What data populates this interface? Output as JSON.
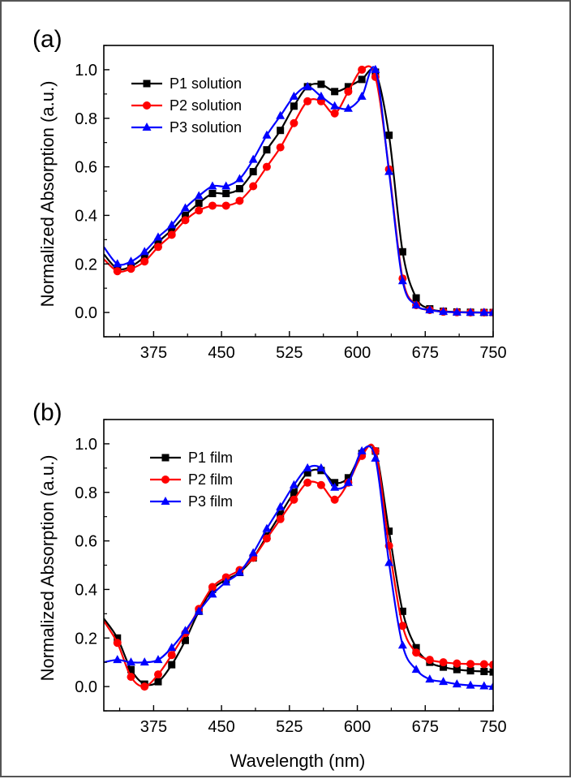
{
  "figure": {
    "x_axis_title": "Wavelength (nm)",
    "y_axis_title": "Normalized Absorption (a.u.)"
  },
  "chart_data": [
    {
      "type": "line",
      "panel_label": "(a)",
      "xlabel": "Wavelength (nm)",
      "ylabel": "Normalized Absorption (a.u.)",
      "xlim": [
        320,
        750
      ],
      "ylim": [
        -0.1,
        1.1
      ],
      "xticks": [
        "375",
        "450",
        "525",
        "600",
        "675",
        "750"
      ],
      "yticks": [
        "0.0",
        "0.2",
        "0.4",
        "0.6",
        "0.8",
        "1.0"
      ],
      "legend_position": "top-left",
      "series": [
        {
          "name": "P1 solution",
          "color": "#000000",
          "marker": "square",
          "x": [
            320,
            335,
            350,
            365,
            380,
            395,
            410,
            425,
            440,
            455,
            470,
            485,
            500,
            515,
            530,
            545,
            560,
            575,
            590,
            605,
            620,
            635,
            650,
            665,
            680,
            695,
            710,
            725,
            740,
            750
          ],
          "y": [
            0.24,
            0.18,
            0.19,
            0.23,
            0.29,
            0.34,
            0.4,
            0.45,
            0.49,
            0.49,
            0.51,
            0.58,
            0.67,
            0.75,
            0.85,
            0.93,
            0.94,
            0.91,
            0.93,
            0.96,
            0.99,
            0.73,
            0.25,
            0.06,
            0.015,
            0.005,
            0.002,
            0.001,
            0.0,
            0.0
          ]
        },
        {
          "name": "P2 solution",
          "color": "#ff0000",
          "marker": "circle",
          "x": [
            320,
            335,
            350,
            365,
            380,
            395,
            410,
            425,
            440,
            455,
            470,
            485,
            500,
            515,
            530,
            545,
            560,
            575,
            590,
            605,
            620,
            635,
            650,
            665,
            680,
            695,
            710,
            725,
            740,
            750
          ],
          "y": [
            0.22,
            0.17,
            0.18,
            0.21,
            0.27,
            0.32,
            0.38,
            0.42,
            0.44,
            0.44,
            0.46,
            0.52,
            0.6,
            0.68,
            0.78,
            0.87,
            0.87,
            0.82,
            0.91,
            1.0,
            0.97,
            0.59,
            0.14,
            0.03,
            0.01,
            0.003,
            0.001,
            0.0,
            0.0,
            0.0
          ]
        },
        {
          "name": "P3 solution",
          "color": "#0000ff",
          "marker": "triangle",
          "x": [
            320,
            335,
            350,
            365,
            380,
            395,
            410,
            425,
            440,
            455,
            470,
            485,
            500,
            515,
            530,
            545,
            560,
            575,
            590,
            605,
            620,
            635,
            650,
            665,
            680,
            695,
            710,
            725,
            740,
            750
          ],
          "y": [
            0.27,
            0.2,
            0.21,
            0.25,
            0.31,
            0.36,
            0.43,
            0.48,
            0.52,
            0.52,
            0.55,
            0.63,
            0.73,
            0.81,
            0.89,
            0.93,
            0.89,
            0.85,
            0.84,
            0.89,
            1.0,
            0.58,
            0.13,
            0.03,
            0.01,
            0.003,
            0.001,
            0.0,
            0.0,
            0.0
          ]
        }
      ]
    },
    {
      "type": "line",
      "panel_label": "(b)",
      "xlabel": "Wavelength (nm)",
      "ylabel": "Normalized Absorption (a.u.)",
      "xlim": [
        320,
        750
      ],
      "ylim": [
        -0.1,
        1.1
      ],
      "xticks": [
        "375",
        "450",
        "525",
        "600",
        "675",
        "750"
      ],
      "yticks": [
        "0.0",
        "0.2",
        "0.4",
        "0.6",
        "0.8",
        "1.0"
      ],
      "legend_position": "top-left",
      "series": [
        {
          "name": "P1 film",
          "color": "#000000",
          "marker": "square",
          "x": [
            320,
            335,
            350,
            365,
            380,
            395,
            410,
            425,
            440,
            455,
            470,
            485,
            500,
            515,
            530,
            545,
            560,
            575,
            590,
            605,
            620,
            635,
            650,
            665,
            680,
            695,
            710,
            725,
            740,
            750
          ],
          "y": [
            0.28,
            0.2,
            0.07,
            0.01,
            0.02,
            0.09,
            0.19,
            0.31,
            0.4,
            0.44,
            0.47,
            0.53,
            0.62,
            0.71,
            0.8,
            0.88,
            0.89,
            0.84,
            0.86,
            0.96,
            0.97,
            0.64,
            0.31,
            0.16,
            0.1,
            0.08,
            0.07,
            0.065,
            0.062,
            0.06
          ]
        },
        {
          "name": "P2 film",
          "color": "#ff0000",
          "marker": "circle",
          "x": [
            320,
            335,
            350,
            365,
            380,
            395,
            410,
            425,
            440,
            455,
            470,
            485,
            500,
            515,
            530,
            545,
            560,
            575,
            590,
            605,
            620,
            635,
            650,
            665,
            680,
            695,
            710,
            725,
            740,
            750
          ],
          "y": [
            0.27,
            0.18,
            0.04,
            0.0,
            0.05,
            0.13,
            0.22,
            0.32,
            0.41,
            0.45,
            0.48,
            0.53,
            0.61,
            0.69,
            0.77,
            0.84,
            0.83,
            0.77,
            0.84,
            0.95,
            0.97,
            0.58,
            0.25,
            0.14,
            0.11,
            0.1,
            0.095,
            0.093,
            0.092,
            0.09
          ]
        },
        {
          "name": "P3 film",
          "color": "#0000ff",
          "marker": "triangle",
          "x": [
            320,
            335,
            350,
            365,
            380,
            395,
            410,
            425,
            440,
            455,
            470,
            485,
            500,
            515,
            530,
            545,
            560,
            575,
            590,
            605,
            620,
            635,
            650,
            665,
            680,
            695,
            710,
            725,
            740,
            750
          ],
          "y": [
            0.1,
            0.11,
            0.1,
            0.1,
            0.11,
            0.16,
            0.23,
            0.31,
            0.38,
            0.43,
            0.47,
            0.55,
            0.65,
            0.74,
            0.83,
            0.9,
            0.9,
            0.82,
            0.84,
            0.97,
            0.94,
            0.51,
            0.17,
            0.07,
            0.03,
            0.02,
            0.01,
            0.005,
            0.002,
            0.0
          ]
        }
      ]
    }
  ]
}
